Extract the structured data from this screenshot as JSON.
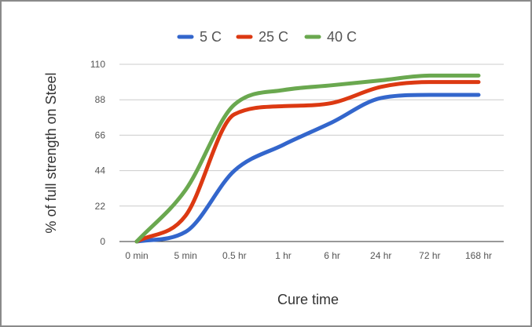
{
  "chart_data": {
    "type": "line",
    "categories": [
      "0 min",
      "5 min",
      "0.5 hr",
      "1 hr",
      "6 hr",
      "24 hr",
      "72 hr",
      "168 hr"
    ],
    "series": [
      {
        "name": "5 C",
        "color": "#3366cc",
        "values": [
          0,
          6,
          44,
          60,
          74,
          89,
          91,
          91
        ]
      },
      {
        "name": "25 C",
        "color": "#dc3912",
        "values": [
          0,
          16,
          79,
          84,
          86,
          96,
          99,
          99
        ]
      },
      {
        "name": "40 C",
        "color": "#6aa84f",
        "values": [
          0,
          32,
          85,
          94,
          97,
          100,
          103,
          103
        ]
      }
    ],
    "xlabel": "Cure time",
    "ylabel": "% of full strength on Steel",
    "ylim": [
      0,
      110
    ],
    "yticks": [
      0,
      22,
      44,
      66,
      88,
      110
    ],
    "grid": true,
    "legend_position": "top"
  }
}
